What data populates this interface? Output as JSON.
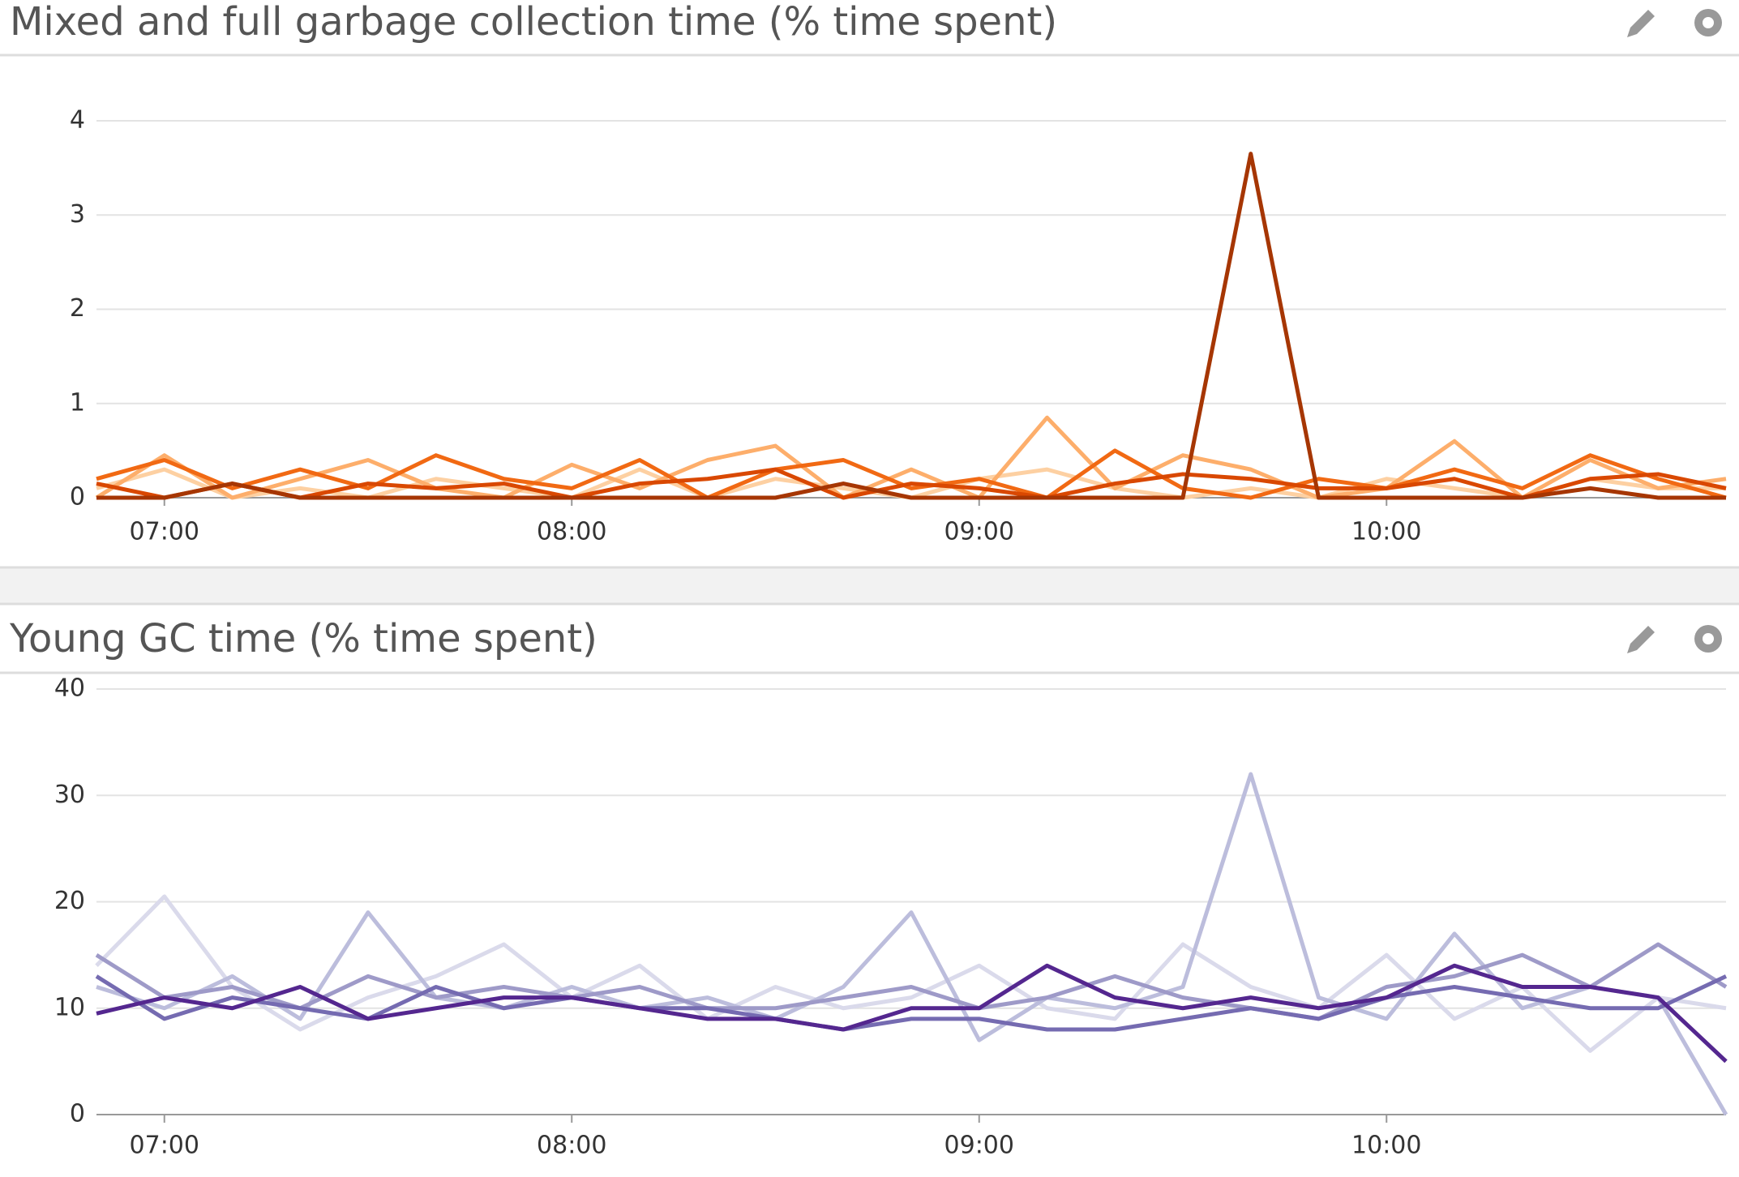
{
  "chart_data": [
    {
      "type": "line",
      "title": "Mixed and full garbage collection time (% time spent)",
      "x": [
        "06:50",
        "07:00",
        "07:10",
        "07:20",
        "07:30",
        "07:40",
        "07:50",
        "08:00",
        "08:10",
        "08:20",
        "08:30",
        "08:40",
        "08:50",
        "09:00",
        "09:10",
        "09:20",
        "09:30",
        "09:40",
        "09:50",
        "10:00",
        "10:10",
        "10:20",
        "10:30",
        "10:40",
        "10:50"
      ],
      "xlim": [
        "06:50",
        "10:50"
      ],
      "xticks": [
        "07:00",
        "08:00",
        "09:00",
        "10:00"
      ],
      "ylim": [
        0,
        4
      ],
      "yticks": [
        0,
        1,
        2,
        3,
        4
      ],
      "grid": true,
      "series": [
        {
          "color": "#fdd0a2",
          "values": [
            0.1,
            0.3,
            0,
            0.1,
            0,
            0.2,
            0.1,
            0,
            0.3,
            0,
            0.2,
            0.1,
            0,
            0.2,
            0.3,
            0.1,
            0,
            0.1,
            0,
            0.2,
            0.1,
            0,
            0.2,
            0.1,
            0.1
          ]
        },
        {
          "color": "#fdae6b",
          "values": [
            0,
            0.45,
            0,
            0.2,
            0.4,
            0.1,
            0,
            0.35,
            0.1,
            0.4,
            0.55,
            0,
            0.3,
            0,
            0.85,
            0.1,
            0.45,
            0.3,
            0,
            0.1,
            0.6,
            0,
            0.4,
            0.1,
            0.2
          ]
        },
        {
          "color": "#f16913",
          "values": [
            0.2,
            0.4,
            0.1,
            0.3,
            0.1,
            0.45,
            0.2,
            0.1,
            0.4,
            0,
            0.3,
            0.4,
            0.1,
            0.2,
            0,
            0.5,
            0.1,
            0,
            0.2,
            0.1,
            0.3,
            0.1,
            0.45,
            0.2,
            0
          ]
        },
        {
          "color": "#d94801",
          "values": [
            0.15,
            0,
            0.15,
            0,
            0.15,
            0.1,
            0.15,
            0,
            0.15,
            0.2,
            0.3,
            0,
            0.15,
            0.1,
            0,
            0.15,
            0.25,
            0.2,
            0.1,
            0.1,
            0.2,
            0,
            0.2,
            0.25,
            0.1
          ]
        },
        {
          "color": "#a63603",
          "values": [
            0,
            0,
            0.15,
            0,
            0,
            0,
            0,
            0,
            0,
            0,
            0,
            0.15,
            0,
            0,
            0,
            0,
            0,
            3.65,
            0,
            0,
            0,
            0,
            0.1,
            0,
            0
          ]
        }
      ]
    },
    {
      "type": "line",
      "title": "Young GC time (% time spent)",
      "x": [
        "06:50",
        "07:00",
        "07:10",
        "07:20",
        "07:30",
        "07:40",
        "07:50",
        "08:00",
        "08:10",
        "08:20",
        "08:30",
        "08:40",
        "08:50",
        "09:00",
        "09:10",
        "09:20",
        "09:30",
        "09:40",
        "09:50",
        "10:00",
        "10:10",
        "10:20",
        "10:30",
        "10:40",
        "10:50"
      ],
      "xlim": [
        "06:50",
        "10:50"
      ],
      "xticks": [
        "07:00",
        "08:00",
        "09:00",
        "10:00"
      ],
      "ylim": [
        0,
        40
      ],
      "yticks": [
        0,
        10,
        20,
        30,
        40
      ],
      "grid": true,
      "series": [
        {
          "color": "#dadaeb",
          "values": [
            14,
            20.5,
            12,
            8,
            11,
            13,
            16,
            11,
            14,
            9,
            12,
            10,
            11,
            14,
            10,
            9,
            16,
            12,
            10,
            15,
            9,
            12,
            6,
            11,
            10
          ]
        },
        {
          "color": "#bcbddc",
          "values": [
            12,
            10,
            13,
            9,
            19,
            11,
            10,
            12,
            10,
            11,
            9,
            12,
            19,
            7,
            11,
            10,
            12,
            32,
            11,
            9,
            17,
            10,
            12,
            11,
            0
          ]
        },
        {
          "color": "#9e9ac8",
          "values": [
            15,
            11,
            12,
            10,
            13,
            11,
            12,
            11,
            12,
            10,
            10,
            11,
            12,
            10,
            11,
            13,
            11,
            10,
            9,
            12,
            13,
            15,
            12,
            16,
            12
          ]
        },
        {
          "color": "#756bb1",
          "values": [
            13,
            9,
            11,
            10,
            9,
            12,
            10,
            11,
            10,
            10,
            9,
            8,
            9,
            9,
            8,
            8,
            9,
            10,
            9,
            11,
            12,
            11,
            10,
            10,
            13
          ]
        },
        {
          "color": "#54278f",
          "values": [
            9.5,
            11,
            10,
            12,
            9,
            10,
            11,
            11,
            10,
            9,
            9,
            8,
            10,
            10,
            14,
            11,
            10,
            11,
            10,
            11,
            14,
            12,
            12,
            11,
            5
          ]
        }
      ]
    }
  ]
}
